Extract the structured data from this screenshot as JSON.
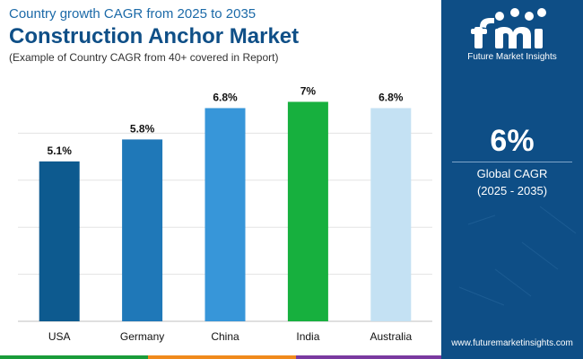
{
  "header": {
    "subtitle_top": "Country growth CAGR from 2025 to 2035",
    "title": "Construction Anchor Market",
    "note": "(Example of Country CAGR from 40+ covered in Report)"
  },
  "chart_data": {
    "type": "bar",
    "categories": [
      "USA",
      "Germany",
      "China",
      "India",
      "Australia"
    ],
    "values": [
      5.1,
      5.8,
      6.8,
      7,
      6.8
    ],
    "value_labels": [
      "5.1%",
      "5.8%",
      "6.8%",
      "7%",
      "6.8%"
    ],
    "ylim": [
      0,
      7.5
    ],
    "grid": true,
    "bar_colors": [
      "#0d5a8f",
      "#1f78b8",
      "#3796d9",
      "#17b03e",
      "#c4e1f3"
    ]
  },
  "sidebar": {
    "brand": "Future Market Insights",
    "cagr_value": "6%",
    "cagr_label": "Global CAGR",
    "cagr_range": "(2025 - 2035)",
    "website": "www.futuremarketinsights.com"
  },
  "colors": {
    "panel_bg": "#0e4e86",
    "title": "#0f4f87",
    "stripe": [
      "#1a9c3a",
      "#f08a1c",
      "#7a3aa0"
    ]
  }
}
